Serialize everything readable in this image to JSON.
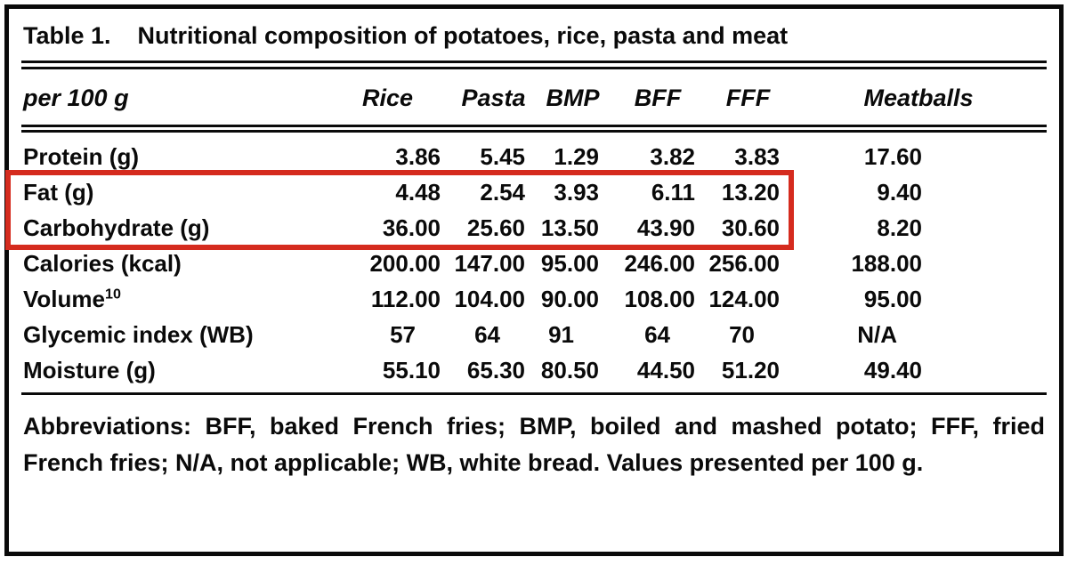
{
  "figure": {
    "title_label": "Table 1.",
    "title_caption": "Nutritional composition of potatoes, rice, pasta and meat",
    "columns": [
      "per 100 g",
      "Rice",
      "Pasta",
      "BMP",
      "BFF",
      "FFF",
      "Meatballs"
    ],
    "rows": [
      {
        "label": "Protein (g)",
        "values": [
          "3.86",
          "5.45",
          "1.29",
          "3.82",
          "3.83",
          "17.60"
        ]
      },
      {
        "label": "Fat (g)",
        "values": [
          "4.48",
          "2.54",
          "3.93",
          "6.11",
          "13.20",
          "9.40"
        ]
      },
      {
        "label": "Carbohydrate (g)",
        "values": [
          "36.00",
          "25.60",
          "13.50",
          "43.90",
          "30.60",
          "8.20"
        ]
      },
      {
        "label": "Calories (kcal)",
        "values": [
          "200.00",
          "147.00",
          "95.00",
          "246.00",
          "256.00",
          "188.00"
        ]
      },
      {
        "label": "Volume",
        "label_sup": "10",
        "values": [
          "112.00",
          "104.00",
          "90.00",
          "108.00",
          "124.00",
          "95.00"
        ]
      },
      {
        "label": "Glycemic index (WB)",
        "values": [
          "57",
          "64",
          "91",
          "64",
          "70",
          "N/A"
        ]
      },
      {
        "label": "Moisture (g)",
        "values": [
          "55.10",
          "65.30",
          "80.50",
          "44.50",
          "51.20",
          "49.40"
        ]
      }
    ],
    "footnote": "Abbreviations: BFF, baked French fries; BMP, boiled and mashed potato; FFF, fried French fries; N/A, not applicable; WB, white bread. Values presented per 100 g.",
    "highlight": {
      "highlighted_rows": [
        "Fat (g)",
        "Carbohydrate (g)"
      ],
      "color": "#d52b1e"
    }
  }
}
